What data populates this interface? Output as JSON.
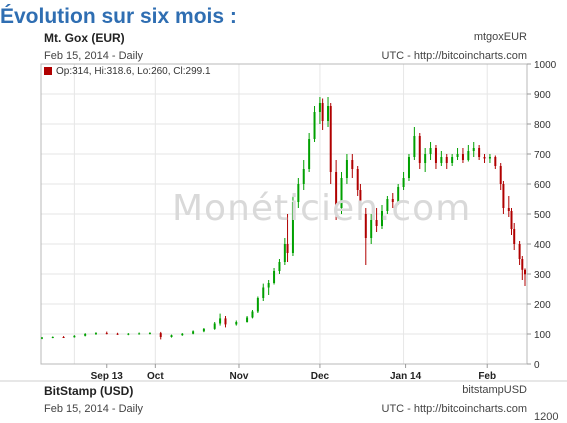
{
  "heading": "Évolution sur six mois :",
  "panel_top": {
    "symbol": "Mt. Gox (EUR)",
    "date_interval": "Feb 15, 2014 - Daily",
    "ticker": "mtgoxEUR",
    "source": "UTC - http://bitcoincharts.com",
    "ohlc": "Op:314, Hi:318.6, Lo:260, Cl:299.1"
  },
  "watermark": "Monéticien.com",
  "panel_bottom": {
    "symbol": "BitStamp (USD)",
    "date_interval": "Feb 15, 2014 - Daily",
    "ticker": "bitstampUSD",
    "source": "UTC - http://bitcoincharts.com",
    "y_top_tick": "1200"
  },
  "chart_data": {
    "type": "candlestick",
    "title": "Mt. Gox (EUR)",
    "x_tick_labels": [
      "Sep 13",
      "Oct",
      "Nov",
      "Dec",
      "Jan 14",
      "Feb"
    ],
    "y_ticks": [
      0,
      100,
      200,
      300,
      400,
      500,
      600,
      700,
      800,
      900,
      1000
    ],
    "ylim": [
      0,
      1000
    ],
    "date_range": [
      "2013-08-20",
      "2014-02-15"
    ],
    "colors": {
      "up": "#00a000",
      "down": "#b00000"
    },
    "candles": [
      {
        "d": "2013-08-20",
        "o": 85,
        "h": 90,
        "l": 83,
        "c": 88
      },
      {
        "d": "2013-08-24",
        "o": 88,
        "h": 92,
        "l": 86,
        "c": 90
      },
      {
        "d": "2013-08-28",
        "o": 90,
        "h": 93,
        "l": 87,
        "c": 89
      },
      {
        "d": "2013-09-01",
        "o": 89,
        "h": 96,
        "l": 88,
        "c": 94
      },
      {
        "d": "2013-09-05",
        "o": 94,
        "h": 103,
        "l": 92,
        "c": 100
      },
      {
        "d": "2013-09-09",
        "o": 100,
        "h": 106,
        "l": 97,
        "c": 103
      },
      {
        "d": "2013-09-13",
        "o": 103,
        "h": 108,
        "l": 99,
        "c": 101
      },
      {
        "d": "2013-09-17",
        "o": 101,
        "h": 104,
        "l": 97,
        "c": 99
      },
      {
        "d": "2013-09-21",
        "o": 99,
        "h": 103,
        "l": 96,
        "c": 101
      },
      {
        "d": "2013-09-25",
        "o": 101,
        "h": 105,
        "l": 98,
        "c": 102
      },
      {
        "d": "2013-09-29",
        "o": 102,
        "h": 106,
        "l": 99,
        "c": 103
      },
      {
        "d": "2013-10-03",
        "o": 103,
        "h": 107,
        "l": 82,
        "c": 90
      },
      {
        "d": "2013-10-07",
        "o": 90,
        "h": 98,
        "l": 88,
        "c": 96
      },
      {
        "d": "2013-10-11",
        "o": 96,
        "h": 103,
        "l": 94,
        "c": 101
      },
      {
        "d": "2013-10-15",
        "o": 101,
        "h": 112,
        "l": 99,
        "c": 109
      },
      {
        "d": "2013-10-19",
        "o": 109,
        "h": 120,
        "l": 106,
        "c": 117
      },
      {
        "d": "2013-10-23",
        "o": 117,
        "h": 140,
        "l": 114,
        "c": 135
      },
      {
        "d": "2013-10-25",
        "o": 135,
        "h": 168,
        "l": 128,
        "c": 152
      },
      {
        "d": "2013-10-27",
        "o": 152,
        "h": 160,
        "l": 122,
        "c": 132
      },
      {
        "d": "2013-10-31",
        "o": 132,
        "h": 145,
        "l": 128,
        "c": 140
      },
      {
        "d": "2013-11-04",
        "o": 140,
        "h": 160,
        "l": 138,
        "c": 155
      },
      {
        "d": "2013-11-06",
        "o": 155,
        "h": 180,
        "l": 152,
        "c": 175
      },
      {
        "d": "2013-11-08",
        "o": 175,
        "h": 225,
        "l": 170,
        "c": 220
      },
      {
        "d": "2013-11-10",
        "o": 220,
        "h": 268,
        "l": 210,
        "c": 255
      },
      {
        "d": "2013-11-12",
        "o": 255,
        "h": 280,
        "l": 230,
        "c": 270
      },
      {
        "d": "2013-11-14",
        "o": 270,
        "h": 320,
        "l": 265,
        "c": 310
      },
      {
        "d": "2013-11-16",
        "o": 310,
        "h": 350,
        "l": 300,
        "c": 340
      },
      {
        "d": "2013-11-18",
        "o": 340,
        "h": 420,
        "l": 330,
        "c": 400
      },
      {
        "d": "2013-11-19",
        "o": 400,
        "h": 500,
        "l": 340,
        "c": 370
      },
      {
        "d": "2013-11-21",
        "o": 370,
        "h": 560,
        "l": 360,
        "c": 540
      },
      {
        "d": "2013-11-23",
        "o": 540,
        "h": 620,
        "l": 520,
        "c": 600
      },
      {
        "d": "2013-11-25",
        "o": 600,
        "h": 680,
        "l": 580,
        "c": 650
      },
      {
        "d": "2013-11-27",
        "o": 650,
        "h": 770,
        "l": 640,
        "c": 750
      },
      {
        "d": "2013-11-29",
        "o": 750,
        "h": 860,
        "l": 740,
        "c": 840
      },
      {
        "d": "2013-12-01",
        "o": 840,
        "h": 890,
        "l": 800,
        "c": 870
      },
      {
        "d": "2013-12-02",
        "o": 870,
        "h": 885,
        "l": 780,
        "c": 810
      },
      {
        "d": "2013-12-04",
        "o": 810,
        "h": 890,
        "l": 790,
        "c": 860
      },
      {
        "d": "2013-12-05",
        "o": 860,
        "h": 870,
        "l": 600,
        "c": 640
      },
      {
        "d": "2013-12-07",
        "o": 640,
        "h": 680,
        "l": 480,
        "c": 520
      },
      {
        "d": "2013-12-09",
        "o": 520,
        "h": 640,
        "l": 500,
        "c": 620
      },
      {
        "d": "2013-12-11",
        "o": 620,
        "h": 700,
        "l": 600,
        "c": 680
      },
      {
        "d": "2013-12-13",
        "o": 680,
        "h": 700,
        "l": 620,
        "c": 650
      },
      {
        "d": "2013-12-15",
        "o": 650,
        "h": 660,
        "l": 560,
        "c": 580
      },
      {
        "d": "2013-12-16",
        "o": 580,
        "h": 600,
        "l": 480,
        "c": 500
      },
      {
        "d": "2013-12-18",
        "o": 500,
        "h": 520,
        "l": 330,
        "c": 420
      },
      {
        "d": "2013-12-20",
        "o": 420,
        "h": 500,
        "l": 400,
        "c": 480
      },
      {
        "d": "2013-12-22",
        "o": 480,
        "h": 520,
        "l": 440,
        "c": 460
      },
      {
        "d": "2013-12-24",
        "o": 460,
        "h": 530,
        "l": 450,
        "c": 510
      },
      {
        "d": "2013-12-26",
        "o": 510,
        "h": 560,
        "l": 500,
        "c": 550
      },
      {
        "d": "2013-12-28",
        "o": 550,
        "h": 570,
        "l": 520,
        "c": 540
      },
      {
        "d": "2013-12-30",
        "o": 540,
        "h": 600,
        "l": 530,
        "c": 590
      },
      {
        "d": "2014-01-01",
        "o": 590,
        "h": 640,
        "l": 580,
        "c": 620
      },
      {
        "d": "2014-01-03",
        "o": 620,
        "h": 700,
        "l": 610,
        "c": 690
      },
      {
        "d": "2014-01-05",
        "o": 690,
        "h": 790,
        "l": 680,
        "c": 760
      },
      {
        "d": "2014-01-07",
        "o": 760,
        "h": 770,
        "l": 650,
        "c": 670
      },
      {
        "d": "2014-01-09",
        "o": 670,
        "h": 720,
        "l": 640,
        "c": 700
      },
      {
        "d": "2014-01-11",
        "o": 700,
        "h": 740,
        "l": 680,
        "c": 720
      },
      {
        "d": "2014-01-13",
        "o": 720,
        "h": 730,
        "l": 650,
        "c": 670
      },
      {
        "d": "2014-01-15",
        "o": 670,
        "h": 710,
        "l": 660,
        "c": 690
      },
      {
        "d": "2014-01-17",
        "o": 690,
        "h": 700,
        "l": 650,
        "c": 670
      },
      {
        "d": "2014-01-19",
        "o": 670,
        "h": 700,
        "l": 660,
        "c": 690
      },
      {
        "d": "2014-01-21",
        "o": 690,
        "h": 720,
        "l": 680,
        "c": 700
      },
      {
        "d": "2014-01-23",
        "o": 700,
        "h": 720,
        "l": 670,
        "c": 680
      },
      {
        "d": "2014-01-25",
        "o": 680,
        "h": 730,
        "l": 675,
        "c": 710
      },
      {
        "d": "2014-01-27",
        "o": 710,
        "h": 740,
        "l": 690,
        "c": 720
      },
      {
        "d": "2014-01-29",
        "o": 720,
        "h": 730,
        "l": 680,
        "c": 690
      },
      {
        "d": "2014-01-31",
        "o": 690,
        "h": 700,
        "l": 670,
        "c": 685
      },
      {
        "d": "2014-02-02",
        "o": 685,
        "h": 700,
        "l": 670,
        "c": 690
      },
      {
        "d": "2014-02-04",
        "o": 690,
        "h": 695,
        "l": 650,
        "c": 660
      },
      {
        "d": "2014-02-06",
        "o": 660,
        "h": 670,
        "l": 580,
        "c": 600
      },
      {
        "d": "2014-02-07",
        "o": 600,
        "h": 610,
        "l": 500,
        "c": 520
      },
      {
        "d": "2014-02-09",
        "o": 520,
        "h": 560,
        "l": 490,
        "c": 510
      },
      {
        "d": "2014-02-10",
        "o": 510,
        "h": 520,
        "l": 430,
        "c": 450
      },
      {
        "d": "2014-02-11",
        "o": 450,
        "h": 470,
        "l": 380,
        "c": 400
      },
      {
        "d": "2014-02-13",
        "o": 400,
        "h": 410,
        "l": 330,
        "c": 350
      },
      {
        "d": "2014-02-14",
        "o": 350,
        "h": 360,
        "l": 280,
        "c": 314
      },
      {
        "d": "2014-02-15",
        "o": 314,
        "h": 318.6,
        "l": 260,
        "c": 299.1
      }
    ]
  }
}
